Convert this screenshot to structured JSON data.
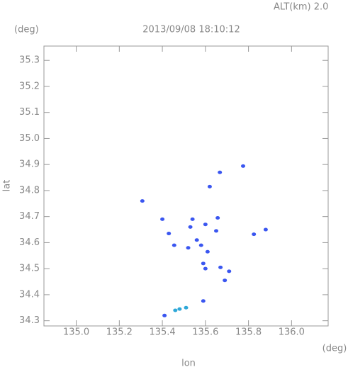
{
  "header": {
    "altitude": "ALT(km)  2.0"
  },
  "chart_data": {
    "type": "scatter",
    "title": "2013/09/08 18:10:12",
    "y_unit": "(deg)",
    "x_unit": "(deg)",
    "ylabel": "lat",
    "xlabel": "lon",
    "xlim": [
      134.85,
      136.17
    ],
    "ylim": [
      34.28,
      35.355
    ],
    "xticks": [
      {
        "value": 135,
        "label": "135.0"
      },
      135.2,
      135.4,
      135.6,
      135.8,
      {
        "value": 136,
        "label": "136.0"
      }
    ],
    "yticks": [
      34.3,
      34.4,
      34.5,
      34.6,
      34.7,
      34.8,
      34.9,
      {
        "value": 35,
        "label": "35.0"
      },
      35.1,
      35.2,
      35.3
    ],
    "series": [
      {
        "color": "#3a56f0",
        "x": [
          135.307,
          135.4,
          135.43,
          135.455,
          135.54,
          135.53,
          135.56,
          135.52,
          135.6,
          135.58,
          135.61,
          135.59,
          135.6,
          135.657,
          135.65,
          135.67,
          135.71,
          135.69,
          135.62,
          135.667,
          135.775,
          135.825,
          135.88,
          135.59,
          135.41
        ],
        "y": [
          34.76,
          34.69,
          34.635,
          34.59,
          34.69,
          34.66,
          34.61,
          34.58,
          34.67,
          34.59,
          34.565,
          34.52,
          34.5,
          34.695,
          34.645,
          34.505,
          34.49,
          34.455,
          34.815,
          34.87,
          34.894,
          34.632,
          34.65,
          34.376,
          34.32
        ]
      },
      {
        "color": "#2fa8d8",
        "x": [
          135.51,
          135.46,
          135.48
        ],
        "y": [
          34.35,
          34.34,
          34.345
        ]
      }
    ]
  }
}
